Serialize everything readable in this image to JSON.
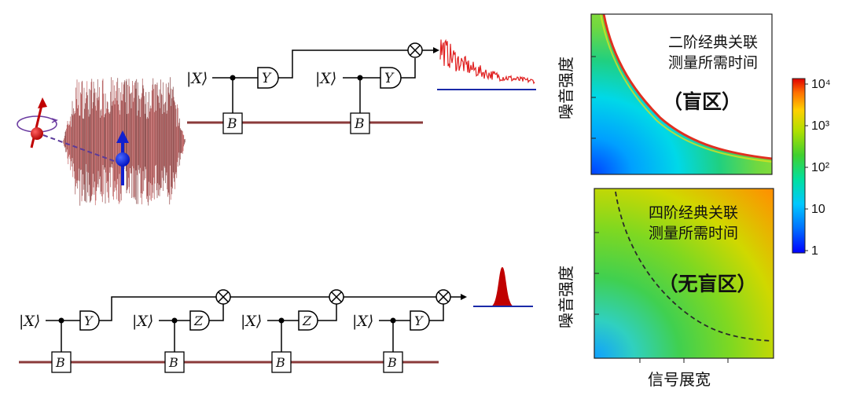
{
  "circuit_top": {
    "ket_labels": [
      "|X⟩",
      "|X⟩"
    ],
    "measure_labels": [
      "Y",
      "Y"
    ],
    "bath_labels": [
      "B",
      "B"
    ]
  },
  "circuit_bottom": {
    "ket_labels": [
      "|X⟩",
      "|X⟩",
      "|X⟩",
      "|X⟩"
    ],
    "measure_labels": [
      "Y",
      "Z",
      "Z",
      "Y"
    ],
    "bath_labels": [
      "B",
      "B",
      "B",
      "B"
    ]
  },
  "panel_top": {
    "title_line1": "二阶经典关联",
    "title_line2": "测量所需时间",
    "region_label": "（盲区）",
    "ylabel": "噪音强度"
  },
  "panel_bottom": {
    "title_line1": "四阶经典关联",
    "title_line2": "测量所需时间",
    "region_label": "（无盲区）",
    "ylabel": "噪音强度",
    "xlabel": "信号展宽"
  },
  "colorbar": {
    "scale": "log",
    "ticks": [
      "1",
      "10",
      "10²",
      "10³",
      "10⁴"
    ],
    "colors": [
      "#0000ff",
      "#00a8ff",
      "#00e6c8",
      "#3ccf3c",
      "#9ee000",
      "#ffe000",
      "#ff8000",
      "#e00000"
    ]
  }
}
